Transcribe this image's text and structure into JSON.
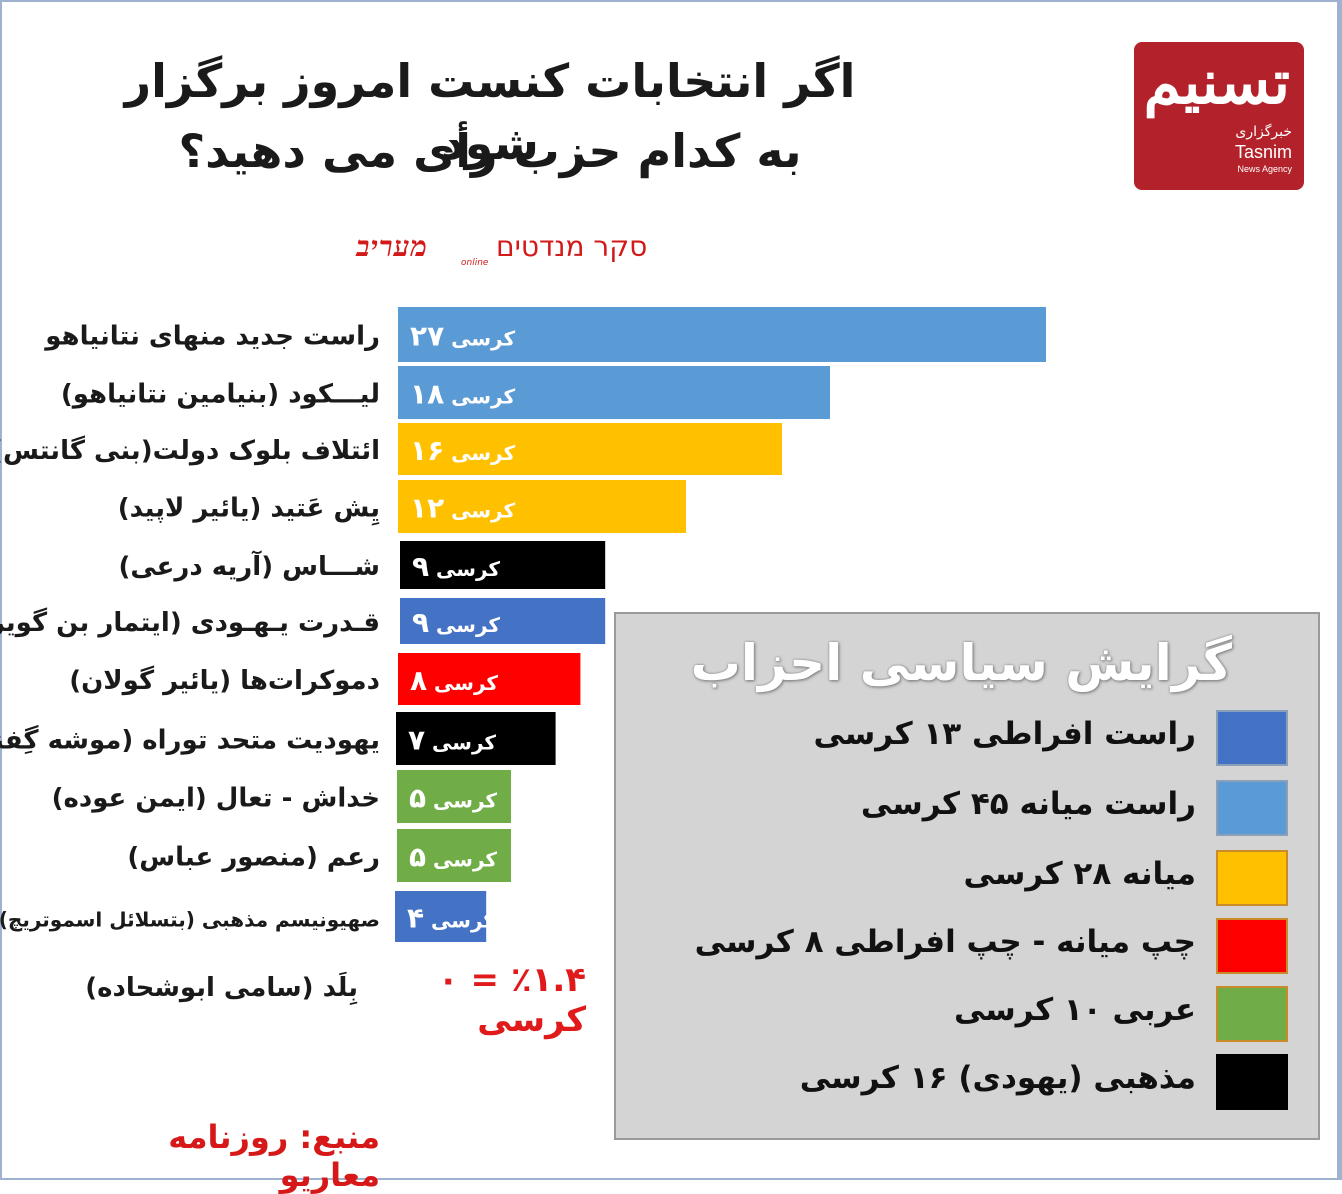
{
  "title_line1": "اگر انتخابات کنست امروز برگزار شود",
  "title_line2": "به کدام حزب رأی می دهید؟",
  "survey": {
    "label": "סקר מנדטים",
    "brand": "מעריב",
    "brand_sub": "online"
  },
  "logo": {
    "fa_main": "تسنیم",
    "fa_sub": "خبرگزاری",
    "en_main": "Tasnim",
    "en_sub": "News Agency"
  },
  "chart_data": {
    "type": "bar",
    "orientation": "horizontal",
    "title": "اگر انتخابات کنست امروز برگزار شود به کدام حزب رأی می دهید؟",
    "categories": [
      "راست جدید منهای نتانیاهو",
      "لیـــکود (بنیامین نتانیاهو)",
      "ائتلاف بلوک دولت(بنی گانتس)",
      "یِش عَتید (یائیر لاپید)",
      "شـــاس (آریه درعی)",
      "قـدرت یـهـودی (ایتمار بن گویر)",
      "دموکرات‌ها (یائیر گولان)",
      "یهودیت متحد توراه (موشه گِفنی)",
      "خداش - تعال (ایمن عوده)",
      "رعم (منصور عباس)",
      "صهیونیسم مذهبی (بتسلائل اسموتریچ)"
    ],
    "values": [
      27,
      18,
      16,
      12,
      9,
      9,
      8,
      7,
      5,
      5,
      4
    ],
    "value_labels": [
      "۲۷",
      "۱۸",
      "۱۶",
      "۱۲",
      "۹",
      "۹",
      "۸",
      "۷",
      "۵",
      "۵",
      "۴"
    ],
    "unit_label": "کرسی",
    "colors": [
      "#5b9bd5",
      "#5b9bd5",
      "#ffc000",
      "#ffc000",
      "#000000",
      "#4472c4",
      "#ff0000",
      "#000000",
      "#70ad47",
      "#70ad47",
      "#4472c4"
    ],
    "xlim": [
      0,
      27
    ],
    "grid": false
  },
  "zero_row": {
    "label": "بِلَد (سامی ابوشحاده)",
    "value_text": "٪۱.۴ = ۰ کرسی"
  },
  "legend": {
    "title": "گرایش سیاسی احزاب",
    "items": [
      {
        "label": "راست افراطی ۱۳ کرسی",
        "color": "#4472c4"
      },
      {
        "label": "راست میانه ۴۵ کرسی",
        "color": "#5b9bd5"
      },
      {
        "label": "میانه ۲۸ کرسی",
        "color": "#ffc000"
      },
      {
        "label": "چپ میانه - چپ افراطی ۸ کرسی",
        "color": "#ff0000"
      },
      {
        "label": "عربی ۱۰ کرسی",
        "color": "#70ad47"
      },
      {
        "label": "مذهبی (یهودی) ۱۶ کرسی",
        "color": "#000000"
      }
    ]
  },
  "source": "منبع: روزنامه معاریو"
}
